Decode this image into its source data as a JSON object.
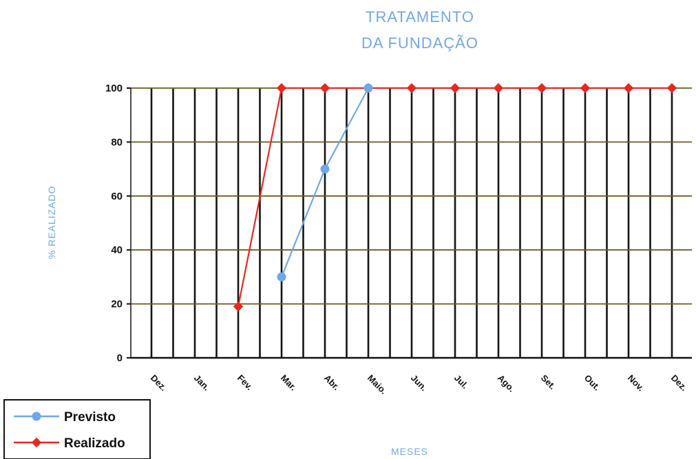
{
  "chart_data": {
    "type": "line",
    "title_lines": [
      "TRATAMENTO",
      "DA FUNDAÇÃO"
    ],
    "xlabel": "MESES",
    "ylabel": "% REALIZADO",
    "categories": [
      "Dez.",
      "Jan.",
      "Fev.",
      "Mar.",
      "Abr.",
      "Maio.",
      "Jun.",
      "Jul.",
      "Ago.",
      "Set.",
      "Out.",
      "Nov.",
      "Dez."
    ],
    "ylim": [
      0,
      100
    ],
    "yticks": [
      0,
      20,
      40,
      60,
      80,
      100
    ],
    "grid": true,
    "legend_position": "bottom-left",
    "series": [
      {
        "name": "Previsto",
        "color": "#6fa8e8",
        "marker": "circle",
        "points": [
          {
            "x": "Mar.",
            "y": 30
          },
          {
            "x": "Abr.",
            "y": 70
          },
          {
            "x": "Maio.",
            "y": 100
          }
        ]
      },
      {
        "name": "Realizado",
        "color": "#e8281e",
        "marker": "diamond",
        "points": [
          {
            "x": "Fev.",
            "y": 19
          },
          {
            "x": "Mar.",
            "y": 100
          },
          {
            "x": "Abr.",
            "y": 100
          },
          {
            "x": "Maio.",
            "y": 100
          },
          {
            "x": "Jun.",
            "y": 100
          },
          {
            "x": "Jul.",
            "y": 100
          },
          {
            "x": "Ago.",
            "y": 100
          },
          {
            "x": "Set.",
            "y": 100
          },
          {
            "x": "Out.",
            "y": 100
          },
          {
            "x": "Nov.",
            "y": 100
          },
          {
            "x": "Dez.",
            "y": 100
          }
        ]
      }
    ]
  }
}
